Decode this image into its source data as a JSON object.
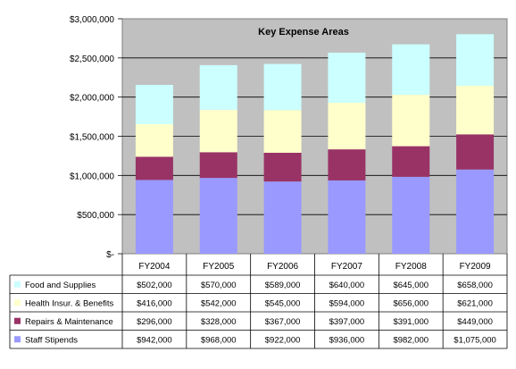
{
  "chart_data": {
    "type": "bar",
    "stacked": true,
    "title": "Key Expense Areas",
    "xlabel": "",
    "ylabel": "",
    "ylim": [
      0,
      3000000
    ],
    "y_ticks": [
      0,
      500000,
      1000000,
      1500000,
      2000000,
      2500000,
      3000000
    ],
    "y_tick_labels": [
      "$-",
      "$500,000",
      "$1,000,000",
      "$1,500,000",
      "$2,000,000",
      "$2,500,000",
      "$3,000,000"
    ],
    "grid": true,
    "plot_background": "#c0c0c0",
    "legend_placement": "data-table",
    "categories": [
      "FY2004",
      "FY2005",
      "FY2006",
      "FY2007",
      "FY2008",
      "FY2009"
    ],
    "series": [
      {
        "name": "Staff Stipends",
        "color": "#9999ff",
        "values": [
          942000,
          968000,
          922000,
          936000,
          982000,
          1075000
        ],
        "labels": [
          "$942,000",
          "$968,000",
          "$922,000",
          "$936,000",
          "$982,000",
          "$1,075,000"
        ]
      },
      {
        "name": "Repairs & Maintenance",
        "color": "#993366",
        "values": [
          296000,
          328000,
          367000,
          397000,
          391000,
          449000
        ],
        "labels": [
          "$296,000",
          "$328,000",
          "$367,000",
          "$397,000",
          "$391,000",
          "$449,000"
        ]
      },
      {
        "name": "Health Insur. & Benefits",
        "color": "#ffffcc",
        "values": [
          416000,
          542000,
          545000,
          594000,
          656000,
          621000
        ],
        "labels": [
          "$416,000",
          "$542,000",
          "$545,000",
          "$594,000",
          "$656,000",
          "$621,000"
        ]
      },
      {
        "name": "Food and Supplies",
        "color": "#ccffff",
        "values": [
          502000,
          570000,
          589000,
          640000,
          645000,
          658000
        ],
        "labels": [
          "$502,000",
          "$570,000",
          "$589,000",
          "$640,000",
          "$645,000",
          "$658,000"
        ]
      }
    ],
    "table_row_order": [
      "Food and Supplies",
      "Health Insur. & Benefits",
      "Repairs & Maintenance",
      "Staff Stipends"
    ]
  }
}
